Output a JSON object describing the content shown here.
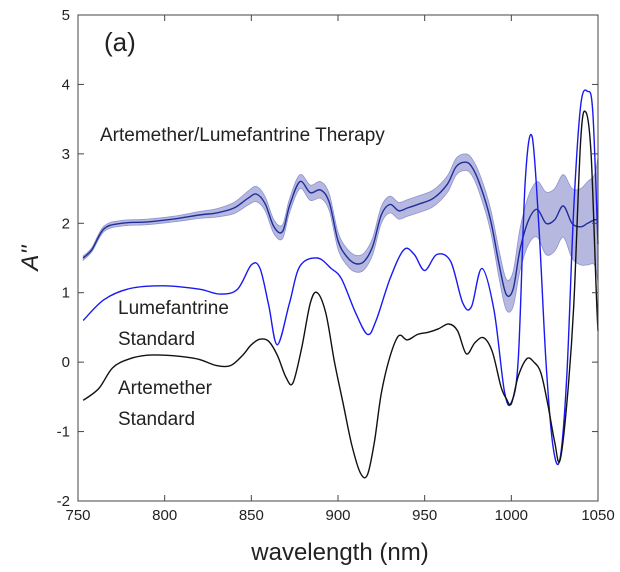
{
  "chart_data": {
    "type": "line",
    "panel_label": "(a)",
    "xlabel": "wavelength (nm)",
    "ylabel": "A''",
    "xlim": [
      750,
      1050
    ],
    "ylim": [
      -2,
      5
    ],
    "xticks": [
      750,
      800,
      850,
      900,
      950,
      1000,
      1050
    ],
    "yticks": [
      -2,
      -1,
      0,
      1,
      2,
      3,
      4,
      5
    ],
    "grid": false,
    "annotations": {
      "therapy": "Artemether/Lumefantrine Therapy",
      "lume_line1": "Lumefantrine",
      "lume_line2": "Standard",
      "arte_line1": "Artemether",
      "arte_line2": "Standard"
    },
    "colors": {
      "therapy": "#1f2f9a",
      "therapy_band": "#a9acd9",
      "lumefantrine": "#1a1af0",
      "artemether": "#111111"
    },
    "series": [
      {
        "id": "therapy",
        "x": [
          753,
          758,
          765,
          775,
          790,
          805,
          820,
          830,
          840,
          848,
          853,
          858,
          863,
          868,
          872,
          878,
          884,
          890,
          895,
          900,
          905,
          910,
          915,
          920,
          925,
          930,
          935,
          940,
          947,
          955,
          963,
          968,
          973,
          977,
          982,
          988,
          993,
          997,
          1001,
          1005,
          1010,
          1015,
          1020,
          1025,
          1030,
          1035,
          1040,
          1044,
          1048,
          1050
        ],
        "y": [
          1.5,
          1.62,
          1.92,
          2.0,
          2.02,
          2.06,
          2.12,
          2.15,
          2.22,
          2.36,
          2.42,
          2.28,
          1.95,
          1.88,
          2.25,
          2.6,
          2.44,
          2.48,
          2.3,
          1.75,
          1.52,
          1.42,
          1.45,
          1.67,
          2.12,
          2.27,
          2.18,
          2.22,
          2.28,
          2.36,
          2.56,
          2.81,
          2.88,
          2.82,
          2.55,
          2.05,
          1.4,
          0.98,
          1.05,
          1.62,
          2.05,
          2.2,
          2.0,
          2.05,
          2.25,
          2.0,
          1.95,
          2.0,
          2.05,
          2.05
        ],
        "band_halfwidth": [
          0.03,
          0.03,
          0.04,
          0.04,
          0.04,
          0.04,
          0.05,
          0.06,
          0.08,
          0.1,
          0.11,
          0.1,
          0.1,
          0.1,
          0.1,
          0.1,
          0.11,
          0.12,
          0.12,
          0.12,
          0.12,
          0.12,
          0.12,
          0.12,
          0.12,
          0.12,
          0.12,
          0.12,
          0.12,
          0.12,
          0.12,
          0.12,
          0.12,
          0.12,
          0.14,
          0.16,
          0.2,
          0.22,
          0.25,
          0.3,
          0.35,
          0.4,
          0.45,
          0.45,
          0.45,
          0.5,
          0.55,
          0.6,
          0.65,
          0.9
        ]
      },
      {
        "id": "lumefantrine",
        "x": [
          753,
          765,
          780,
          800,
          820,
          832,
          842,
          850,
          855,
          860,
          865,
          872,
          878,
          888,
          896,
          902,
          910,
          917,
          922,
          930,
          938,
          944,
          950,
          957,
          965,
          972,
          977,
          983,
          990,
          996,
          1000,
          1004,
          1008,
          1012,
          1016,
          1020,
          1024,
          1028,
          1032,
          1036,
          1040,
          1044,
          1047,
          1050
        ],
        "y": [
          0.6,
          0.9,
          1.06,
          1.1,
          1.05,
          0.98,
          1.05,
          1.4,
          1.35,
          0.82,
          0.25,
          0.85,
          1.38,
          1.5,
          1.35,
          1.2,
          0.72,
          0.4,
          0.6,
          1.2,
          1.62,
          1.55,
          1.32,
          1.55,
          1.45,
          0.85,
          0.8,
          1.35,
          0.75,
          -0.42,
          -0.58,
          0.05,
          2.6,
          3.25,
          1.9,
          0.0,
          -1.2,
          -1.4,
          -0.2,
          2.2,
          3.7,
          3.9,
          3.6,
          1.7
        ]
      },
      {
        "id": "artemether",
        "x": [
          753,
          762,
          770,
          780,
          790,
          800,
          810,
          820,
          830,
          838,
          845,
          850,
          855,
          860,
          865,
          870,
          874,
          879,
          884,
          888,
          893,
          898,
          903,
          908,
          913,
          917,
          921,
          925,
          930,
          935,
          940,
          946,
          952,
          958,
          964,
          969,
          974,
          979,
          984,
          989,
          994,
          997,
          1000,
          1004,
          1009,
          1013,
          1017,
          1021,
          1025,
          1028,
          1032,
          1036,
          1040,
          1043,
          1046,
          1049,
          1050
        ],
        "y": [
          -0.55,
          -0.38,
          -0.08,
          0.05,
          0.1,
          0.1,
          0.08,
          0.04,
          -0.05,
          -0.05,
          0.1,
          0.25,
          0.33,
          0.3,
          0.1,
          -0.22,
          -0.3,
          0.2,
          0.85,
          1.0,
          0.7,
          0.0,
          -0.6,
          -1.2,
          -1.6,
          -1.62,
          -1.15,
          -0.45,
          0.08,
          0.38,
          0.32,
          0.4,
          0.43,
          0.48,
          0.55,
          0.45,
          0.12,
          0.28,
          0.35,
          0.15,
          -0.35,
          -0.52,
          -0.6,
          -0.2,
          0.05,
          0.0,
          -0.15,
          -0.6,
          -1.15,
          -1.42,
          -0.6,
          0.8,
          3.2,
          3.6,
          3.0,
          1.0,
          0.45
        ]
      }
    ]
  }
}
